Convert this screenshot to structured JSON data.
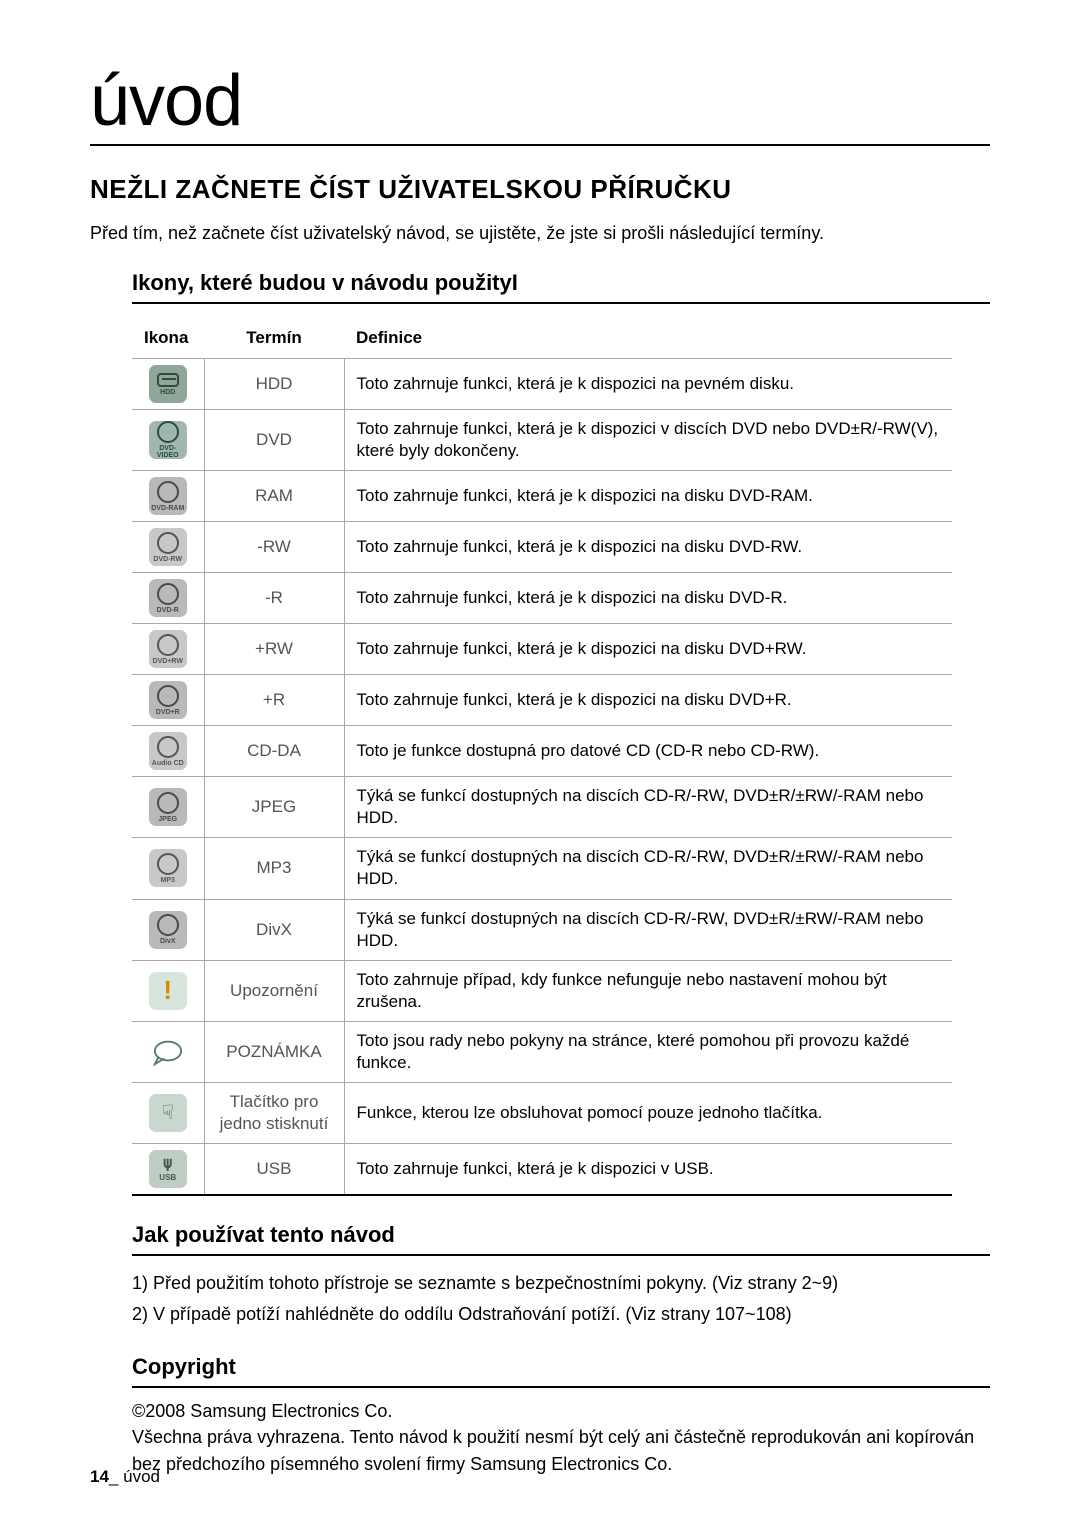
{
  "page": {
    "title": "úvod",
    "section_heading": "NEŽLI ZAČNETE ČÍST UŽIVATELSKOU PŘÍRUČKU",
    "intro": "Před tím, než začnete číst uživatelský návod, se ujistěte, že jste si prošli následující termíny.",
    "icons_heading": "Ikony, které budou v návodu použityI"
  },
  "table": {
    "headers": {
      "c1": "Ikona",
      "c2": "Termín",
      "c3": "Definice"
    },
    "rows": [
      {
        "icon_bg": "#8fa79a",
        "icon_fg": "#2f4a3e",
        "icon_kind": "hdd",
        "icon_label": "HDD",
        "term": "HDD",
        "def": "Toto zahrnuje funkci, která je k dispozici na pevném disku."
      },
      {
        "icon_bg": "#9fb7ac",
        "icon_fg": "#2f4a3e",
        "icon_kind": "disc",
        "icon_label": "DVD-VIDEO",
        "term": "DVD",
        "def": "Toto zahrnuje funkci, která je k dispozici v discích DVD nebo DVD±R/-RW(V), které byly dokončeny."
      },
      {
        "icon_bg": "#b9b9b9",
        "icon_fg": "#4a4a4a",
        "icon_kind": "disc",
        "icon_label": "DVD-RAM",
        "term": "RAM",
        "def": "Toto zahrnuje funkci, která je k dispozici na disku DVD-RAM."
      },
      {
        "icon_bg": "#c8c8c8",
        "icon_fg": "#555555",
        "icon_kind": "disc",
        "icon_label": "DVD-RW",
        "term": "-RW",
        "def": "Toto zahrnuje funkci, která je k dispozici na disku DVD-RW."
      },
      {
        "icon_bg": "#b9b9b9",
        "icon_fg": "#4a4a4a",
        "icon_kind": "disc",
        "icon_label": "DVD-R",
        "term": "-R",
        "def": "Toto zahrnuje funkci, která je k dispozici na disku DVD-R."
      },
      {
        "icon_bg": "#c8c8c8",
        "icon_fg": "#555555",
        "icon_kind": "disc",
        "icon_label": "DVD+RW",
        "term": "+RW",
        "def": "Toto zahrnuje funkci, která je k dispozici na disku DVD+RW."
      },
      {
        "icon_bg": "#b9b9b9",
        "icon_fg": "#4a4a4a",
        "icon_kind": "disc",
        "icon_label": "DVD+R",
        "term": "+R",
        "def": "Toto zahrnuje funkci, která je k dispozici na disku DVD+R."
      },
      {
        "icon_bg": "#c8c8c8",
        "icon_fg": "#555555",
        "icon_kind": "disc",
        "icon_label": "Audio CD",
        "term": "CD-DA",
        "def": "Toto je funkce dostupná pro datové CD (CD-R nebo CD-RW)."
      },
      {
        "icon_bg": "#b9b9b9",
        "icon_fg": "#4a4a4a",
        "icon_kind": "disc",
        "icon_label": "JPEG",
        "term": "JPEG",
        "def": "Týká se funkcí dostupných na discích CD-R/-RW, DVD±R/±RW/-RAM nebo HDD."
      },
      {
        "icon_bg": "#c8c8c8",
        "icon_fg": "#555555",
        "icon_kind": "disc",
        "icon_label": "MP3",
        "term": "MP3",
        "def": "Týká se funkcí dostupných na discích CD-R/-RW, DVD±R/±RW/-RAM nebo HDD."
      },
      {
        "icon_bg": "#b9b9b9",
        "icon_fg": "#4a4a4a",
        "icon_kind": "disc",
        "icon_label": "DivX",
        "term": "DivX",
        "def": "Týká se funkcí dostupných na discích CD-R/-RW, DVD±R/±RW/-RAM nebo HDD."
      },
      {
        "icon_bg": "#d7e6dd",
        "icon_fg": "#d68a00",
        "icon_kind": "warn",
        "icon_label": "",
        "term": "Upozornění",
        "def": "Toto zahrnuje případ, kdy funkce nefunguje nebo nastavení mohou být zrušena."
      },
      {
        "icon_bg": "#ffffff",
        "icon_fg": "#5a7a6c",
        "icon_kind": "note",
        "icon_label": "",
        "term": "POZNÁMKA",
        "def": "Toto jsou rady nebo pokyny na stránce, které pomohou při provozu každé funkce."
      },
      {
        "icon_bg": "#c9d8cf",
        "icon_fg": "#3f5a4c",
        "icon_kind": "hand",
        "icon_label": "",
        "term": "Tlačítko pro jedno stisknutí",
        "def": "Funkce, kterou lze obsluhovat pomocí pouze jednoho tlačítka."
      },
      {
        "icon_bg": "#bfcdc5",
        "icon_fg": "#3f5a4c",
        "icon_kind": "usb",
        "icon_label": "USB",
        "term": "USB",
        "def": "Toto zahrnuje funkci, která je k dispozici v USB."
      }
    ]
  },
  "howto": {
    "heading": "Jak používat tento návod",
    "items": [
      "1)  Před použitím tohoto přístroje se seznamte s bezpečnostními pokyny. (Viz strany 2~9)",
      "2)  V případě potíží nahlédněte do oddílu Odstraňování potíží. (Viz strany 107~108)"
    ]
  },
  "copyright": {
    "heading": "Copyright",
    "line1": "©2008 Samsung Electronics Co.",
    "line2": "Všechna práva vyhrazena. Tento návod k použití nesmí být celý ani částečně reprodukován ani kopírován bez předchozího písemného svolení firmy Samsung Electronics Co."
  },
  "footer": {
    "page_num": "14",
    "sep": "_",
    "label": "úvod"
  }
}
